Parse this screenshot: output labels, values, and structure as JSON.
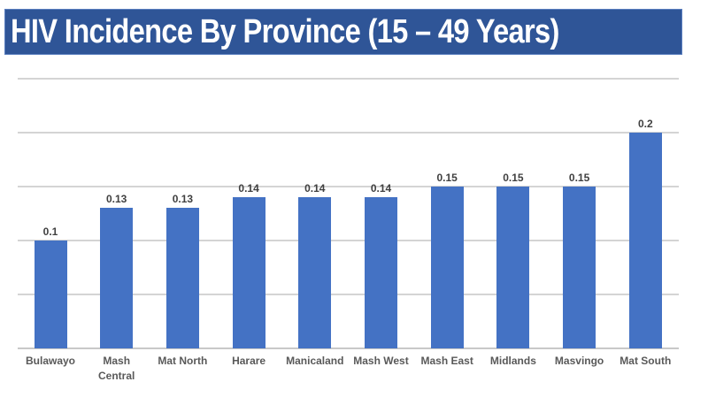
{
  "chart_data": {
    "type": "bar",
    "title": "HIV Incidence By Province (15 – 49 Years)",
    "xlabel": "",
    "ylabel": "",
    "categories": [
      "Bulawayo",
      "Mash Central",
      "Mat North",
      "Harare",
      "Manicaland",
      "Mash West",
      "Mash East",
      "Midlands",
      "Masvingo",
      "Mat South"
    ],
    "category_display": [
      "Bulawayo",
      "Mash\nCentral",
      "Mat North",
      "Harare",
      "Manicaland",
      "Mash West",
      "Mash East",
      "Midlands",
      "Masvingo",
      "Mat South"
    ],
    "values": [
      0.1,
      0.13,
      0.13,
      0.14,
      0.14,
      0.14,
      0.15,
      0.15,
      0.15,
      0.2
    ],
    "value_labels": [
      "0.1",
      "0.13",
      "0.13",
      "0.14",
      "0.14",
      "0.14",
      "0.15",
      "0.15",
      "0.15",
      "0.2"
    ],
    "ylim": [
      0,
      0.25
    ],
    "yticks": [
      0,
      0.05,
      0.1,
      0.15,
      0.2,
      0.25
    ],
    "grid": true,
    "y_tick_labels_visible": false,
    "legend": null,
    "bar_color": "#4472C4"
  },
  "banner": {
    "title": "HIV Incidence By Province (15 – 49 Years)",
    "background": "#2F5597"
  }
}
